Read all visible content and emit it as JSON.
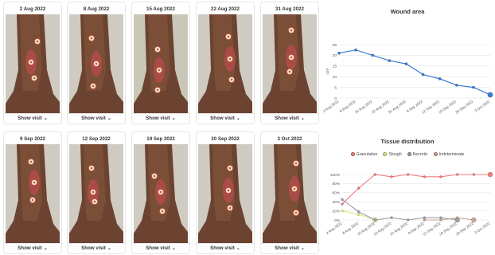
{
  "visits": [
    {
      "date": "2 Aug 2022",
      "show_label": "Show visit"
    },
    {
      "date": "8 Aug 2022",
      "show_label": "Show visit"
    },
    {
      "date": "15 Aug 2022",
      "show_label": "Show visit"
    },
    {
      "date": "22 Aug 2022",
      "show_label": "Show visit"
    },
    {
      "date": "31 Aug 2022",
      "show_label": "Show visit"
    },
    {
      "date": "9 Sep 2022",
      "show_label": "Show visit"
    },
    {
      "date": "12 Sep 2022",
      "show_label": "Show visit"
    },
    {
      "date": "19 Sep 2022",
      "show_label": "Show visit"
    },
    {
      "date": "30 Sep 2022",
      "show_label": "Show visit"
    },
    {
      "date": "3 Oct 2022",
      "show_label": "Show visit"
    }
  ],
  "chevron_icon": "chevron-down-icon",
  "chart_data": [
    {
      "type": "line",
      "title": "Wound area",
      "ylabel": "cm²",
      "x": [
        "2 Aug 2022",
        "8 Aug 2022",
        "15 Aug 2022",
        "22 Aug 2022",
        "31 Aug 2022",
        "9 Sep 2022",
        "12 Sep 2022",
        "19 Sep 2022",
        "30 Sep 2022",
        "3 Oct 2022"
      ],
      "series": [
        {
          "values": [
            21,
            22.5,
            20,
            17.5,
            16,
            11,
            9,
            6,
            5,
            1.5
          ],
          "color": "#3a7bd5"
        }
      ],
      "ylim": [
        0,
        25
      ],
      "yticks": [
        0,
        5,
        10,
        15,
        20,
        25
      ],
      "grid": true
    },
    {
      "type": "line",
      "title": "Tissue distribution",
      "legend": "top",
      "x": [
        "2 Aug 2022",
        "8 Aug 2022",
        "15 Aug 2022",
        "22 Aug 2022",
        "31 Aug 2022",
        "9 Sep 2022",
        "12 Sep 2022",
        "19 Sep 2022",
        "30 Sep 2022",
        "3 Oct 2022"
      ],
      "series": [
        {
          "name": "Granulation",
          "color": "#f07b7b",
          "values": [
            35,
            70,
            100,
            95,
            100,
            95,
            95,
            100,
            100,
            100
          ]
        },
        {
          "name": "Slough",
          "color": "#e6e67a",
          "values": [
            20,
            12,
            0,
            null,
            null,
            null,
            null,
            null,
            null,
            null
          ]
        },
        {
          "name": "Necrotic",
          "color": "#9aa0a8",
          "values": [
            45,
            18,
            0,
            5,
            0,
            5,
            5,
            0,
            null,
            null
          ]
        },
        {
          "name": "Indeterminate",
          "color": "#c9a393",
          "values": [
            null,
            null,
            null,
            null,
            null,
            0,
            0,
            5,
            0,
            null
          ]
        }
      ],
      "ylim": [
        0,
        100
      ],
      "yticks": [
        "0%",
        "20%",
        "40%",
        "60%",
        "80%",
        "100%"
      ],
      "grid": true
    }
  ]
}
